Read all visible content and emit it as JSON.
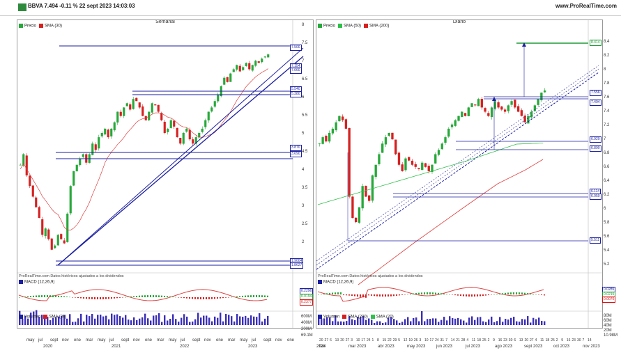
{
  "header": {
    "ticker": "BBVA 7.494 -0.11 % 22 sept 2023 14:03:03",
    "site": "www.ProRealTime.com"
  },
  "left": {
    "title": "Semanal",
    "legend_price": "Precio",
    "legend_sma": "SMA (30)",
    "y_ticks": [
      "8",
      "7.5",
      "7",
      "6.5",
      "6",
      "5.5",
      "5",
      "4.5",
      "4",
      "3.5",
      "3",
      "2.5",
      "2"
    ],
    "tags": [
      "7.500",
      "7.154",
      "7.060",
      "5.540",
      "5.380",
      "3.870",
      "3.690",
      "1.9004",
      "1.8627"
    ],
    "note": "ProRealTime.com Datos históricos ajustados a los dividendos",
    "macd_label": "MACD (12,26,9)",
    "macd_vals": [
      "0.2296",
      "0.0194",
      "0.2377"
    ],
    "macd_ticks": [
      "0.4",
      "0.2",
      "0",
      "-0.2"
    ],
    "vol_label": "Volumen",
    "vol_sma": "SMA (30)",
    "vol_ticks": [
      "600M",
      "400M",
      "200M",
      "69.1M"
    ],
    "months": [
      "may",
      "jul",
      "sept",
      "nov",
      "ene",
      "mar",
      "may",
      "jul",
      "sept",
      "nov",
      "ene",
      "mar",
      "may",
      "jul",
      "sept",
      "nov",
      "ene",
      "mar",
      "may",
      "jul",
      "sept",
      "nov",
      "ene"
    ],
    "years": [
      "2020",
      "2021",
      "2022",
      "2023",
      "2024"
    ]
  },
  "right": {
    "title": "Diario",
    "legend_price": "Precio",
    "legend_sma50": "SMA (50)",
    "legend_sma200": "SMA (200)",
    "y_ticks": [
      "8.4",
      "8.2",
      "8",
      "7.8",
      "7.6",
      "7.4",
      "7.2",
      "7",
      "6.8",
      "6.6",
      "6.4",
      "6.2",
      "6",
      "5.8",
      "5.6",
      "5.4",
      "5.2"
    ],
    "tags": [
      "8.414",
      "7.556",
      "7.494",
      "6.920",
      "6.890",
      "6.114",
      "6.050",
      "5.511"
    ],
    "note": "ProRealTime.com Datos históricos ajustados a los dividendos",
    "macd_label": "MACD (12,26,9)",
    "macd_vals": [
      "0.0285",
      "0.0215",
      "0.0070"
    ],
    "macd_ticks": [
      "0.2",
      "0",
      "-0.1",
      "-0.2"
    ],
    "vol_label": "Volumen",
    "vol_sma200": "SMA (200)",
    "vol_sma20": "SMA (20)",
    "vol_ticks": [
      "80M",
      "60M",
      "40M",
      "20M",
      "10.98M"
    ],
    "days": [
      "20",
      "27",
      "6",
      "13",
      "20",
      "27",
      "3",
      "10",
      "17",
      "24",
      "1",
      "8",
      "15",
      "22",
      "29",
      "5",
      "12",
      "19",
      "26",
      "3",
      "10",
      "17",
      "24",
      "31",
      "7",
      "14",
      "21",
      "28",
      "4",
      "11",
      "18",
      "25",
      "2",
      "9",
      "16",
      "23",
      "30",
      "6",
      "13",
      "20",
      "27",
      "4",
      "11",
      "18",
      "25",
      "2",
      "9",
      "16",
      "23",
      "30",
      "7",
      "14"
    ],
    "months": [
      "feb",
      "mar 2023",
      "abr 2023",
      "may 2023",
      "jun 2023",
      "jul 2023",
      "ago 2023",
      "sept 2023",
      "oct 2023",
      "nov 2023"
    ]
  },
  "colors": {
    "up": "#27a83a",
    "down": "#d62020",
    "channel": "#1b1fa0",
    "sma_red": "#e04040",
    "sma_green": "#2fc04a",
    "target": "#1f9a36"
  }
}
